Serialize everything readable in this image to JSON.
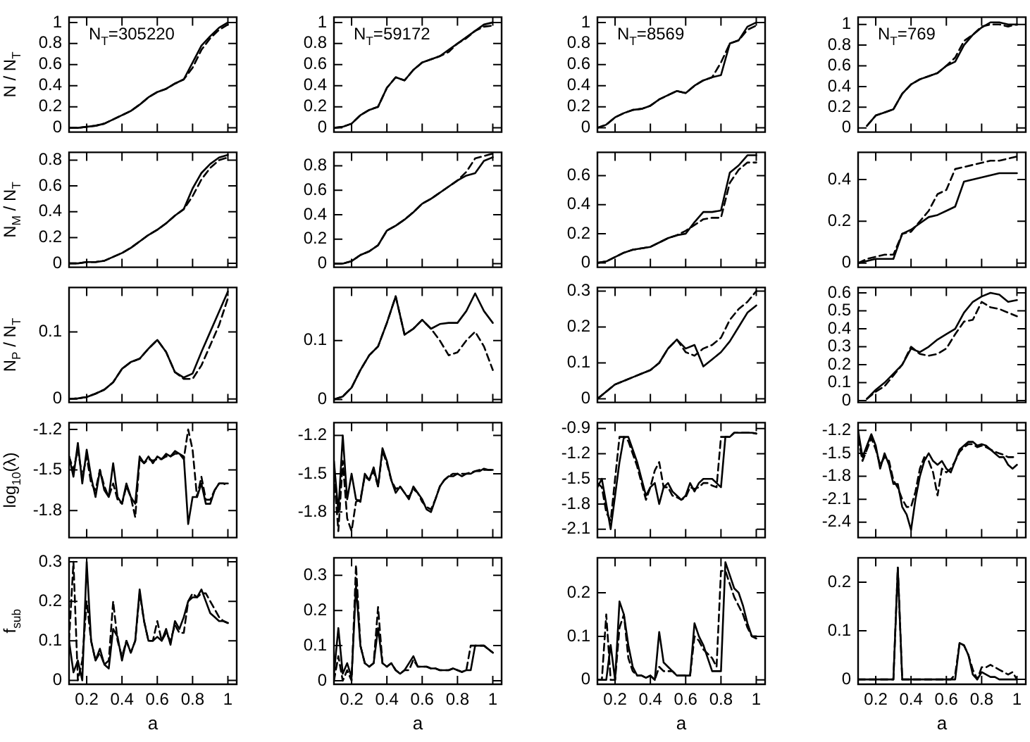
{
  "chart_data": [
    {
      "type": "line",
      "ylabel": "N / N$_{T}$",
      "annotations": [
        "N$_{T}$=305220"
      ],
      "tick_labels": "y",
      "marker": "none",
      "x": [
        0.1,
        0.15,
        0.2,
        0.25,
        0.3,
        0.35,
        0.4,
        0.45,
        0.5,
        0.55,
        0.6,
        0.65,
        0.7,
        0.75,
        0.8,
        0.85,
        0.9,
        0.95,
        1
      ],
      "xlim": [
        0.1,
        1.05
      ],
      "xticks": [
        0.2,
        0.4,
        0.6,
        0.8,
        1
      ],
      "ylim": [
        -0.04,
        1.05
      ],
      "yticks": [
        0,
        0.2,
        0.4,
        0.6,
        0.8,
        1
      ],
      "series": [
        {
          "color": "#000000",
          "line_style": "solid",
          "values": [
            0,
            0,
            0.01,
            0.02,
            0.04,
            0.08,
            0.12,
            0.16,
            0.22,
            0.29,
            0.34,
            0.37,
            0.42,
            0.46,
            0.62,
            0.78,
            0.87,
            0.95,
            1
          ]
        },
        {
          "color": "#000000",
          "line_style": "dashed",
          "values": [
            0,
            0,
            0.01,
            0.02,
            0.04,
            0.08,
            0.12,
            0.16,
            0.22,
            0.29,
            0.34,
            0.37,
            0.42,
            0.46,
            0.57,
            0.74,
            0.85,
            0.93,
            0.98
          ]
        }
      ]
    },
    {
      "type": "line",
      "annotations": [
        "N$_{T}$=59172"
      ],
      "tick_labels": "y",
      "marker": "none",
      "x": [
        0.1,
        0.15,
        0.2,
        0.25,
        0.3,
        0.35,
        0.4,
        0.45,
        0.5,
        0.55,
        0.6,
        0.65,
        0.7,
        0.75,
        0.8,
        0.85,
        0.9,
        0.95,
        1
      ],
      "xlim": [
        0.1,
        1.05
      ],
      "xticks": [
        0.2,
        0.4,
        0.6,
        0.8,
        1
      ],
      "ylim": [
        -0.04,
        1.05
      ],
      "yticks": [
        0,
        0.2,
        0.4,
        0.6,
        0.8,
        1
      ],
      "series": [
        {
          "color": "#000000",
          "line_style": "solid",
          "values": [
            0,
            0.01,
            0.04,
            0.12,
            0.17,
            0.2,
            0.38,
            0.48,
            0.45,
            0.55,
            0.62,
            0.65,
            0.68,
            0.74,
            0.8,
            0.86,
            0.92,
            0.98,
            1
          ]
        },
        {
          "color": "#000000",
          "line_style": "dashed",
          "values": [
            0,
            0.01,
            0.04,
            0.12,
            0.17,
            0.2,
            0.38,
            0.48,
            0.45,
            0.55,
            0.62,
            0.65,
            0.68,
            0.72,
            0.8,
            0.85,
            0.92,
            0.96,
            0.97
          ]
        }
      ]
    },
    {
      "type": "line",
      "annotations": [
        "N$_{T}$=8569"
      ],
      "tick_labels": "y",
      "marker": "none",
      "x": [
        0.1,
        0.15,
        0.2,
        0.25,
        0.3,
        0.35,
        0.4,
        0.45,
        0.5,
        0.55,
        0.6,
        0.65,
        0.7,
        0.75,
        0.8,
        0.85,
        0.9,
        0.95,
        1
      ],
      "xlim": [
        0.1,
        1.05
      ],
      "xticks": [
        0.2,
        0.4,
        0.6,
        0.8,
        1
      ],
      "ylim": [
        -0.04,
        1.05
      ],
      "yticks": [
        0,
        0.2,
        0.4,
        0.6,
        0.8,
        1
      ],
      "series": [
        {
          "color": "#000000",
          "line_style": "solid",
          "values": [
            0,
            0.03,
            0.1,
            0.14,
            0.17,
            0.18,
            0.21,
            0.27,
            0.31,
            0.35,
            0.33,
            0.4,
            0.45,
            0.48,
            0.5,
            0.8,
            0.83,
            0.96,
            1
          ]
        },
        {
          "color": "#000000",
          "line_style": "dashed",
          "values": [
            0,
            0.03,
            0.1,
            0.14,
            0.17,
            0.18,
            0.21,
            0.27,
            0.31,
            0.35,
            0.33,
            0.4,
            0.45,
            0.48,
            0.62,
            0.8,
            0.83,
            0.93,
            0.97
          ]
        }
      ]
    },
    {
      "type": "line",
      "annotations": [
        "N$_{T}$=769"
      ],
      "tick_labels": "y",
      "marker": "none",
      "x": [
        0.15,
        0.2,
        0.25,
        0.3,
        0.35,
        0.4,
        0.45,
        0.5,
        0.55,
        0.6,
        0.65,
        0.7,
        0.75,
        0.8,
        0.85,
        0.9,
        0.95,
        1
      ],
      "xlim": [
        0.1,
        1.05
      ],
      "xticks": [
        0.2,
        0.4,
        0.6,
        0.8,
        1
      ],
      "ylim": [
        -0.04,
        1.07
      ],
      "yticks": [
        0,
        0.2,
        0.4,
        0.6,
        0.8,
        1
      ],
      "series": [
        {
          "color": "#000000",
          "line_style": "solid",
          "values": [
            0.02,
            0.12,
            0.15,
            0.18,
            0.33,
            0.42,
            0.47,
            0.5,
            0.53,
            0.6,
            0.64,
            0.8,
            0.9,
            0.97,
            1.02,
            1.02,
            1,
            1
          ]
        },
        {
          "color": "#000000",
          "line_style": "dashed",
          "values": [
            0.02,
            0.12,
            0.15,
            0.18,
            0.33,
            0.42,
            0.47,
            0.5,
            0.53,
            0.6,
            0.68,
            0.84,
            0.9,
            0.98,
            1,
            1,
            0.98,
            1
          ]
        }
      ]
    },
    {
      "type": "line",
      "ylabel": "N$_{M}$ / N$_{T}$",
      "tick_labels": "y",
      "marker": "none",
      "x": [
        0.1,
        0.15,
        0.2,
        0.25,
        0.3,
        0.35,
        0.4,
        0.45,
        0.5,
        0.55,
        0.6,
        0.65,
        0.7,
        0.75,
        0.8,
        0.85,
        0.9,
        0.95,
        1
      ],
      "xlim": [
        0.1,
        1.05
      ],
      "xticks": [
        0.2,
        0.4,
        0.6,
        0.8,
        1
      ],
      "ylim": [
        -0.03,
        0.86
      ],
      "yticks": [
        0,
        0.2,
        0.4,
        0.6,
        0.8
      ],
      "series": [
        {
          "color": "#000000",
          "line_style": "solid",
          "values": [
            0,
            0,
            0.01,
            0.01,
            0.02,
            0.05,
            0.08,
            0.12,
            0.17,
            0.22,
            0.26,
            0.31,
            0.37,
            0.42,
            0.58,
            0.7,
            0.77,
            0.82,
            0.84
          ]
        },
        {
          "color": "#000000",
          "line_style": "dashed",
          "values": [
            0,
            0,
            0.01,
            0.01,
            0.02,
            0.05,
            0.08,
            0.12,
            0.17,
            0.22,
            0.26,
            0.31,
            0.37,
            0.42,
            0.52,
            0.65,
            0.74,
            0.8,
            0.82
          ]
        }
      ]
    },
    {
      "type": "line",
      "tick_labels": "y",
      "marker": "none",
      "x": [
        0.1,
        0.15,
        0.2,
        0.25,
        0.3,
        0.35,
        0.4,
        0.45,
        0.5,
        0.55,
        0.6,
        0.65,
        0.7,
        0.75,
        0.8,
        0.85,
        0.9,
        0.95,
        1
      ],
      "xlim": [
        0.1,
        1.05
      ],
      "xticks": [
        0.2,
        0.4,
        0.6,
        0.8,
        1
      ],
      "ylim": [
        -0.03,
        0.91
      ],
      "yticks": [
        0,
        0.2,
        0.4,
        0.6,
        0.8
      ],
      "series": [
        {
          "color": "#000000",
          "line_style": "solid",
          "values": [
            0,
            0,
            0.02,
            0.07,
            0.1,
            0.15,
            0.27,
            0.31,
            0.36,
            0.42,
            0.49,
            0.53,
            0.58,
            0.63,
            0.68,
            0.72,
            0.74,
            0.84,
            0.87
          ]
        },
        {
          "color": "#000000",
          "line_style": "dashed",
          "values": [
            0,
            0,
            0.02,
            0.07,
            0.1,
            0.15,
            0.27,
            0.31,
            0.36,
            0.42,
            0.49,
            0.53,
            0.58,
            0.63,
            0.68,
            0.75,
            0.86,
            0.88,
            0.9
          ]
        }
      ]
    },
    {
      "type": "line",
      "tick_labels": "y",
      "marker": "none",
      "x": [
        0.1,
        0.15,
        0.2,
        0.25,
        0.3,
        0.35,
        0.4,
        0.45,
        0.5,
        0.55,
        0.6,
        0.65,
        0.7,
        0.75,
        0.8,
        0.85,
        0.9,
        0.95,
        1
      ],
      "xlim": [
        0.1,
        1.05
      ],
      "xticks": [
        0.2,
        0.4,
        0.6,
        0.8,
        1
      ],
      "ylim": [
        -0.03,
        0.76
      ],
      "yticks": [
        0,
        0.2,
        0.4,
        0.6
      ],
      "series": [
        {
          "color": "#000000",
          "line_style": "solid",
          "values": [
            0,
            0.01,
            0.04,
            0.07,
            0.09,
            0.1,
            0.11,
            0.14,
            0.17,
            0.19,
            0.2,
            0.28,
            0.35,
            0.35,
            0.36,
            0.62,
            0.67,
            0.74,
            0.74
          ]
        },
        {
          "color": "#000000",
          "line_style": "dashed",
          "values": [
            0,
            0.01,
            0.04,
            0.07,
            0.09,
            0.1,
            0.11,
            0.14,
            0.17,
            0.19,
            0.22,
            0.26,
            0.3,
            0.31,
            0.31,
            0.55,
            0.64,
            0.69,
            0.69
          ]
        }
      ]
    },
    {
      "type": "line",
      "tick_labels": "y",
      "marker": "none",
      "x": [
        0.1,
        0.15,
        0.2,
        0.25,
        0.3,
        0.35,
        0.4,
        0.45,
        0.5,
        0.55,
        0.6,
        0.65,
        0.7,
        0.75,
        0.8,
        0.85,
        0.9,
        0.95,
        1
      ],
      "xlim": [
        0.1,
        1.05
      ],
      "xticks": [
        0.2,
        0.4,
        0.6,
        0.8,
        1
      ],
      "ylim": [
        -0.02,
        0.53
      ],
      "yticks": [
        0,
        0.2,
        0.4
      ],
      "series": [
        {
          "color": "#000000",
          "line_style": "solid",
          "values": [
            0,
            0.01,
            0.02,
            0.02,
            0.02,
            0.14,
            0.16,
            0.19,
            0.22,
            0.23,
            0.25,
            0.27,
            0.39,
            0.4,
            0.41,
            0.42,
            0.43,
            0.43,
            0.43
          ]
        },
        {
          "color": "#000000",
          "line_style": "dashed",
          "values": [
            0,
            0.02,
            0.03,
            0.04,
            0.04,
            0.14,
            0.15,
            0.2,
            0.25,
            0.33,
            0.35,
            0.45,
            0.46,
            0.47,
            0.48,
            0.49,
            0.49,
            0.5,
            0.51
          ]
        }
      ]
    },
    {
      "type": "line",
      "ylabel": "N$_{P}$ / N$_{T}$",
      "tick_labels": "y",
      "marker": "none",
      "x": [
        0.1,
        0.15,
        0.2,
        0.25,
        0.3,
        0.35,
        0.4,
        0.45,
        0.5,
        0.55,
        0.6,
        0.65,
        0.7,
        0.75,
        0.8,
        0.85,
        0.9,
        0.95,
        1
      ],
      "xlim": [
        0.1,
        1.05
      ],
      "xticks": [
        0.2,
        0.4,
        0.6,
        0.8,
        1
      ],
      "ylim": [
        -0.005,
        0.166
      ],
      "yticks": [
        0,
        0.1
      ],
      "series": [
        {
          "color": "#000000",
          "line_style": "solid",
          "values": [
            0,
            0.001,
            0.003,
            0.008,
            0.014,
            0.025,
            0.045,
            0.055,
            0.06,
            0.075,
            0.088,
            0.07,
            0.04,
            0.032,
            0.038,
            0.07,
            0.1,
            0.13,
            0.16
          ]
        },
        {
          "color": "#000000",
          "line_style": "dashed",
          "values": [
            0,
            0.001,
            0.003,
            0.008,
            0.014,
            0.025,
            0.045,
            0.055,
            0.06,
            0.075,
            0.088,
            0.07,
            0.04,
            0.03,
            0.03,
            0.05,
            0.08,
            0.11,
            0.15
          ]
        }
      ]
    },
    {
      "type": "line",
      "tick_labels": "y",
      "marker": "none",
      "x": [
        0.1,
        0.15,
        0.2,
        0.25,
        0.3,
        0.35,
        0.4,
        0.45,
        0.5,
        0.55,
        0.6,
        0.65,
        0.7,
        0.75,
        0.8,
        0.85,
        0.9,
        0.95,
        1
      ],
      "xlim": [
        0.1,
        1.05
      ],
      "xticks": [
        0.2,
        0.4,
        0.6,
        0.8,
        1
      ],
      "ylim": [
        -0.005,
        0.19
      ],
      "yticks": [
        0,
        0.1
      ],
      "series": [
        {
          "color": "#000000",
          "line_style": "solid",
          "values": [
            0,
            0.005,
            0.02,
            0.05,
            0.075,
            0.09,
            0.13,
            0.175,
            0.11,
            0.12,
            0.135,
            0.12,
            0.128,
            0.13,
            0.13,
            0.15,
            0.18,
            0.15,
            0.13
          ]
        },
        {
          "color": "#000000",
          "line_style": "dashed",
          "values": [
            0,
            0.005,
            0.02,
            0.05,
            0.075,
            0.09,
            0.13,
            0.175,
            0.11,
            0.12,
            0.135,
            0.12,
            0.1,
            0.075,
            0.08,
            0.1,
            0.115,
            0.09,
            0.05
          ]
        }
      ]
    },
    {
      "type": "line",
      "tick_labels": "y",
      "marker": "none",
      "x": [
        0.1,
        0.15,
        0.2,
        0.25,
        0.3,
        0.35,
        0.4,
        0.45,
        0.5,
        0.55,
        0.6,
        0.65,
        0.7,
        0.75,
        0.8,
        0.85,
        0.9,
        0.95,
        1
      ],
      "xlim": [
        0.1,
        1.05
      ],
      "xticks": [
        0.2,
        0.4,
        0.6,
        0.8,
        1
      ],
      "ylim": [
        -0.01,
        0.31
      ],
      "yticks": [
        0,
        0.1,
        0.2,
        0.3
      ],
      "series": [
        {
          "color": "#000000",
          "line_style": "solid",
          "values": [
            0,
            0.02,
            0.04,
            0.05,
            0.06,
            0.07,
            0.08,
            0.1,
            0.14,
            0.165,
            0.14,
            0.15,
            0.09,
            0.11,
            0.13,
            0.16,
            0.2,
            0.24,
            0.26
          ]
        },
        {
          "color": "#000000",
          "line_style": "dashed",
          "values": [
            0,
            0.02,
            0.04,
            0.05,
            0.06,
            0.07,
            0.08,
            0.1,
            0.14,
            0.165,
            0.13,
            0.12,
            0.14,
            0.15,
            0.17,
            0.22,
            0.25,
            0.27,
            0.3
          ]
        }
      ]
    },
    {
      "type": "line",
      "tick_labels": "y",
      "marker": "none",
      "x": [
        0.15,
        0.2,
        0.25,
        0.3,
        0.35,
        0.4,
        0.45,
        0.5,
        0.55,
        0.6,
        0.65,
        0.7,
        0.75,
        0.8,
        0.85,
        0.9,
        0.95,
        1
      ],
      "xlim": [
        0.1,
        1.05
      ],
      "xticks": [
        0.2,
        0.4,
        0.6,
        0.8,
        1
      ],
      "ylim": [
        -0.01,
        0.63
      ],
      "yticks": [
        0,
        0.1,
        0.2,
        0.3,
        0.4,
        0.5,
        0.6
      ],
      "series": [
        {
          "color": "#000000",
          "line_style": "solid",
          "values": [
            0.01,
            0.06,
            0.1,
            0.15,
            0.2,
            0.29,
            0.27,
            0.3,
            0.34,
            0.37,
            0.4,
            0.49,
            0.55,
            0.58,
            0.6,
            0.59,
            0.55,
            0.56
          ]
        },
        {
          "color": "#000000",
          "line_style": "dashed",
          "values": [
            0.01,
            0.05,
            0.08,
            0.14,
            0.2,
            0.3,
            0.26,
            0.25,
            0.26,
            0.29,
            0.37,
            0.44,
            0.45,
            0.55,
            0.52,
            0.51,
            0.49,
            0.47
          ]
        }
      ]
    },
    {
      "type": "line",
      "ylabel": "log$_{10}$(λ)",
      "tick_labels": "y",
      "marker": "none",
      "x": [
        0.1,
        0.125,
        0.15,
        0.175,
        0.2,
        0.225,
        0.25,
        0.275,
        0.3,
        0.325,
        0.35,
        0.375,
        0.4,
        0.425,
        0.45,
        0.475,
        0.5,
        0.525,
        0.55,
        0.575,
        0.6,
        0.625,
        0.65,
        0.675,
        0.7,
        0.725,
        0.75,
        0.775,
        0.8,
        0.825,
        0.85,
        0.875,
        0.9,
        0.925,
        0.95,
        0.975,
        1
      ],
      "xlim": [
        0.1,
        1.05
      ],
      "xticks": [
        0.2,
        0.4,
        0.6,
        0.8,
        1
      ],
      "ylim": [
        -2.0,
        -1.15
      ],
      "yticks": [
        -1.2,
        -1.5,
        -1.8
      ],
      "series": [
        {
          "color": "#000000",
          "line_style": "solid",
          "values": [
            -1.4,
            -1.55,
            -1.3,
            -1.6,
            -1.35,
            -1.55,
            -1.7,
            -1.5,
            -1.65,
            -1.7,
            -1.45,
            -1.7,
            -1.75,
            -1.6,
            -1.7,
            -1.75,
            -1.4,
            -1.45,
            -1.4,
            -1.45,
            -1.4,
            -1.42,
            -1.38,
            -1.4,
            -1.36,
            -1.38,
            -1.4,
            -1.9,
            -1.7,
            -1.7,
            -1.6,
            -1.75,
            -1.75,
            -1.65,
            -1.6,
            -1.6,
            -1.6
          ]
        },
        {
          "color": "#000000",
          "line_style": "dashed",
          "values": [
            -1.4,
            -1.5,
            -1.35,
            -1.55,
            -1.4,
            -1.6,
            -1.65,
            -1.5,
            -1.62,
            -1.7,
            -1.6,
            -1.72,
            -1.75,
            -1.62,
            -1.7,
            -1.85,
            -1.42,
            -1.45,
            -1.42,
            -1.43,
            -1.42,
            -1.42,
            -1.4,
            -1.4,
            -1.38,
            -1.38,
            -1.42,
            -1.2,
            -1.35,
            -1.7,
            -1.55,
            -1.72,
            -1.72,
            -1.65,
            -1.6,
            -1.6,
            -1.62
          ]
        }
      ]
    },
    {
      "type": "line",
      "tick_labels": "y",
      "marker": "none",
      "x": [
        0.1,
        0.125,
        0.15,
        0.175,
        0.2,
        0.225,
        0.25,
        0.275,
        0.3,
        0.325,
        0.35,
        0.375,
        0.4,
        0.425,
        0.45,
        0.475,
        0.5,
        0.525,
        0.55,
        0.575,
        0.6,
        0.625,
        0.65,
        0.675,
        0.7,
        0.725,
        0.75,
        0.775,
        0.8,
        0.825,
        0.85,
        0.875,
        0.9,
        0.925,
        0.95,
        0.975,
        1
      ],
      "xlim": [
        0.1,
        1.05
      ],
      "xticks": [
        0.2,
        0.4,
        0.6,
        0.8,
        1
      ],
      "ylim": [
        -2.0,
        -1.1
      ],
      "yticks": [
        -1.2,
        -1.5,
        -1.8
      ],
      "series": [
        {
          "color": "#000000",
          "line_style": "solid",
          "values": [
            -1.4,
            -1.8,
            -1.2,
            -1.7,
            -1.5,
            -1.7,
            -1.72,
            -1.5,
            -1.55,
            -1.45,
            -1.6,
            -1.3,
            -1.4,
            -1.55,
            -1.65,
            -1.6,
            -1.65,
            -1.7,
            -1.6,
            -1.65,
            -1.7,
            -1.78,
            -1.8,
            -1.7,
            -1.6,
            -1.55,
            -1.52,
            -1.52,
            -1.5,
            -1.52,
            -1.5,
            -1.5,
            -1.48,
            -1.48,
            -1.46,
            -1.47,
            -1.47
          ]
        },
        {
          "color": "#000000",
          "line_style": "dashed",
          "values": [
            -1.5,
            -1.95,
            -1.4,
            -1.85,
            -1.95,
            -1.72,
            -1.7,
            -1.52,
            -1.55,
            -1.48,
            -1.6,
            -1.32,
            -1.42,
            -1.55,
            -1.62,
            -1.6,
            -1.65,
            -1.68,
            -1.62,
            -1.65,
            -1.72,
            -1.76,
            -1.78,
            -1.7,
            -1.6,
            -1.55,
            -1.52,
            -1.5,
            -1.5,
            -1.5,
            -1.5,
            -1.49,
            -1.48,
            -1.47,
            -1.47,
            -1.47,
            -1.47
          ]
        }
      ]
    },
    {
      "type": "line",
      "tick_labels": "y",
      "marker": "none",
      "x": [
        0.1,
        0.125,
        0.15,
        0.175,
        0.2,
        0.225,
        0.25,
        0.275,
        0.3,
        0.325,
        0.35,
        0.375,
        0.4,
        0.425,
        0.45,
        0.475,
        0.5,
        0.525,
        0.55,
        0.575,
        0.6,
        0.625,
        0.65,
        0.675,
        0.7,
        0.725,
        0.75,
        0.775,
        0.8,
        0.825,
        0.85,
        0.875,
        0.9,
        0.925,
        0.95,
        0.975,
        1
      ],
      "xlim": [
        0.1,
        1.05
      ],
      "xticks": [
        0.2,
        0.4,
        0.6,
        0.8,
        1
      ],
      "ylim": [
        -2.2,
        -0.83
      ],
      "yticks": [
        -0.9,
        -1.2,
        -1.5,
        -1.8,
        -2.1
      ],
      "series": [
        {
          "color": "#000000",
          "line_style": "solid",
          "values": [
            -1.6,
            -1.5,
            -1.8,
            -2.1,
            -1.7,
            -1.3,
            -1.0,
            -1.0,
            -1.15,
            -1.3,
            -1.5,
            -1.7,
            -1.6,
            -1.55,
            -1.8,
            -1.6,
            -1.55,
            -1.65,
            -1.7,
            -1.75,
            -1.7,
            -1.55,
            -1.65,
            -1.55,
            -1.5,
            -1.5,
            -1.5,
            -1.55,
            -1.6,
            -1.0,
            -1.0,
            -0.95,
            -0.95,
            -0.95,
            -0.95,
            -0.95,
            -0.96
          ]
        },
        {
          "color": "#000000",
          "line_style": "dashed",
          "values": [
            -1.55,
            -1.6,
            -1.9,
            -2.0,
            -1.5,
            -1.0,
            -1.0,
            -1.05,
            -1.2,
            -1.35,
            -1.55,
            -1.75,
            -1.6,
            -1.4,
            -1.3,
            -1.6,
            -1.6,
            -1.7,
            -1.72,
            -1.75,
            -1.72,
            -1.6,
            -1.62,
            -1.6,
            -1.55,
            -1.55,
            -1.58,
            -1.6,
            -1.0,
            -1.0,
            -1.0,
            -0.95,
            -0.95,
            -0.95,
            -0.95,
            -0.95,
            -0.96
          ]
        }
      ]
    },
    {
      "type": "line",
      "tick_labels": "y",
      "marker": "none",
      "x": [
        0.1,
        0.125,
        0.15,
        0.175,
        0.2,
        0.225,
        0.25,
        0.275,
        0.3,
        0.325,
        0.35,
        0.375,
        0.4,
        0.425,
        0.45,
        0.475,
        0.5,
        0.525,
        0.55,
        0.575,
        0.6,
        0.625,
        0.65,
        0.675,
        0.7,
        0.725,
        0.75,
        0.775,
        0.8,
        0.825,
        0.85,
        0.875,
        0.9,
        0.925,
        0.95,
        0.975,
        1
      ],
      "xlim": [
        0.1,
        1.05
      ],
      "xticks": [
        0.2,
        0.4,
        0.6,
        0.8,
        1
      ],
      "ylim": [
        -2.6,
        -1.1
      ],
      "yticks": [
        -1.2,
        -1.5,
        -1.8,
        -2.1,
        -2.4
      ],
      "series": [
        {
          "color": "#000000",
          "line_style": "solid",
          "values": [
            -1.2,
            -1.55,
            -1.4,
            -1.25,
            -1.4,
            -1.7,
            -1.5,
            -1.65,
            -1.9,
            -1.9,
            -2.2,
            -2.3,
            -2.5,
            -2.1,
            -1.8,
            -1.6,
            -1.5,
            -1.6,
            -1.65,
            -1.6,
            -1.7,
            -1.75,
            -1.6,
            -1.45,
            -1.4,
            -1.35,
            -1.35,
            -1.4,
            -1.38,
            -1.4,
            -1.45,
            -1.5,
            -1.55,
            -1.55,
            -1.65,
            -1.7,
            -1.65
          ]
        },
        {
          "color": "#000000",
          "line_style": "dashed",
          "values": [
            -1.3,
            -1.6,
            -1.45,
            -1.3,
            -1.45,
            -1.65,
            -1.55,
            -1.6,
            -1.85,
            -1.95,
            -2.1,
            -2.2,
            -2.2,
            -2.0,
            -1.7,
            -1.55,
            -1.6,
            -1.75,
            -2.05,
            -1.7,
            -1.75,
            -1.7,
            -1.6,
            -1.48,
            -1.42,
            -1.38,
            -1.38,
            -1.42,
            -1.4,
            -1.42,
            -1.45,
            -1.48,
            -1.5,
            -1.52,
            -1.55,
            -1.55,
            -1.55
          ]
        }
      ]
    },
    {
      "type": "line",
      "ylabel": "f$_{sub}$",
      "xlabel": "a",
      "marker": "none",
      "x": [
        0.1,
        0.125,
        0.15,
        0.175,
        0.2,
        0.225,
        0.25,
        0.275,
        0.3,
        0.325,
        0.35,
        0.375,
        0.4,
        0.425,
        0.45,
        0.475,
        0.5,
        0.525,
        0.55,
        0.575,
        0.6,
        0.625,
        0.65,
        0.675,
        0.7,
        0.725,
        0.75,
        0.775,
        0.8,
        0.825,
        0.85,
        0.875,
        0.9,
        0.925,
        0.95,
        0.975,
        1
      ],
      "xlim": [
        0.1,
        1.05
      ],
      "xticks": [
        0.2,
        0.4,
        0.6,
        0.8,
        1
      ],
      "ylim": [
        -0.01,
        0.31
      ],
      "yticks": [
        0,
        0.1,
        0.2,
        0.3
      ],
      "series": [
        {
          "color": "#000000",
          "line_style": "solid",
          "values": [
            0.1,
            0.02,
            0.05,
            0,
            0.3,
            0.1,
            0.05,
            0.08,
            0.04,
            0.03,
            0.13,
            0.11,
            0.05,
            0.1,
            0.07,
            0.1,
            0.23,
            0.15,
            0.1,
            0.1,
            0.11,
            0.1,
            0.13,
            0.09,
            0.15,
            0.13,
            0.16,
            0.2,
            0.21,
            0.21,
            0.23,
            0.2,
            0.17,
            0.16,
            0.15,
            0.15,
            0.145
          ]
        },
        {
          "color": "#000000",
          "line_style": "dashed",
          "values": [
            0.1,
            0.3,
            0,
            0.05,
            0.2,
            0.1,
            0.05,
            0.07,
            0.04,
            0.05,
            0.2,
            0.1,
            0.06,
            0.1,
            0.07,
            0.1,
            0.22,
            0.15,
            0.1,
            0.1,
            0.15,
            0.1,
            0.12,
            0.1,
            0.14,
            0.12,
            0.12,
            0.2,
            0.22,
            0.21,
            0.22,
            0.22,
            0.2,
            0.18,
            0.16,
            0.15,
            0.145
          ]
        }
      ]
    },
    {
      "type": "line",
      "xlabel": "a",
      "marker": "none",
      "x": [
        0.1,
        0.125,
        0.15,
        0.175,
        0.2,
        0.225,
        0.25,
        0.275,
        0.3,
        0.325,
        0.35,
        0.375,
        0.4,
        0.425,
        0.45,
        0.475,
        0.5,
        0.525,
        0.55,
        0.575,
        0.6,
        0.625,
        0.65,
        0.675,
        0.7,
        0.725,
        0.75,
        0.775,
        0.8,
        0.825,
        0.85,
        0.875,
        0.9,
        0.925,
        0.95,
        0.975,
        1
      ],
      "xlim": [
        0.1,
        1.05
      ],
      "xticks": [
        0.2,
        0.4,
        0.6,
        0.8,
        1
      ],
      "ylim": [
        -0.01,
        0.35
      ],
      "yticks": [
        0,
        0.1,
        0.2,
        0.3
      ],
      "series": [
        {
          "color": "#000000",
          "line_style": "solid",
          "values": [
            0.02,
            0.15,
            0.02,
            0.05,
            0.01,
            0.27,
            0.1,
            0.05,
            0.04,
            0.05,
            0.15,
            0.05,
            0.04,
            0.05,
            0.03,
            0.02,
            0.03,
            0.05,
            0.07,
            0.04,
            0.04,
            0.04,
            0.035,
            0.035,
            0.03,
            0.03,
            0.03,
            0.035,
            0.03,
            0.025,
            0.03,
            0.03,
            0.1,
            0.1,
            0.1,
            0.09,
            0.08
          ]
        },
        {
          "color": "#000000",
          "line_style": "dashed",
          "values": [
            0,
            0.07,
            0,
            0.03,
            0,
            0.33,
            0.1,
            0.05,
            0.04,
            0.05,
            0.21,
            0.05,
            0.04,
            0.05,
            0.03,
            0.02,
            0.03,
            0.03,
            0.06,
            0.04,
            0.04,
            0.04,
            0.035,
            0.035,
            0.03,
            0.03,
            0.03,
            0.035,
            0.03,
            0.025,
            0.03,
            0.1,
            0.1,
            0.1,
            0.1,
            0.09,
            0.08
          ]
        }
      ]
    },
    {
      "type": "line",
      "xlabel": "a",
      "marker": "none",
      "x": [
        0.1,
        0.125,
        0.15,
        0.175,
        0.2,
        0.225,
        0.25,
        0.275,
        0.3,
        0.325,
        0.35,
        0.375,
        0.4,
        0.425,
        0.45,
        0.475,
        0.5,
        0.525,
        0.55,
        0.575,
        0.6,
        0.625,
        0.65,
        0.675,
        0.7,
        0.725,
        0.75,
        0.775,
        0.8,
        0.825,
        0.85,
        0.875,
        0.9,
        0.925,
        0.95,
        0.975,
        1
      ],
      "xlim": [
        0.1,
        1.05
      ],
      "xticks": [
        0.2,
        0.4,
        0.6,
        0.8,
        1
      ],
      "ylim": [
        -0.01,
        0.28
      ],
      "yticks": [
        0,
        0.1,
        0.2
      ],
      "series": [
        {
          "color": "#000000",
          "line_style": "solid",
          "values": [
            0,
            0,
            0,
            0.08,
            0,
            0.18,
            0.15,
            0.08,
            0.03,
            0.01,
            0.01,
            0.005,
            0.01,
            0,
            0.11,
            0.04,
            0.03,
            0.02,
            0.01,
            0.01,
            0.01,
            0.01,
            0.13,
            0.1,
            0.08,
            0.05,
            0.02,
            0.02,
            0.02,
            0.27,
            0.24,
            0.21,
            0.2,
            0.17,
            0.13,
            0.1,
            0.1
          ]
        },
        {
          "color": "#000000",
          "line_style": "dashed",
          "values": [
            0,
            0,
            0.15,
            0,
            0,
            0.12,
            0.15,
            0.05,
            0.02,
            0.01,
            0.01,
            0.005,
            0.01,
            0,
            0.03,
            0.02,
            0.02,
            0.02,
            0.01,
            0.01,
            0.01,
            0.01,
            0.1,
            0.09,
            0.07,
            0.06,
            0.05,
            0.03,
            0.25,
            0.25,
            0.22,
            0.19,
            0.17,
            0.15,
            0.12,
            0.1,
            0.095
          ]
        }
      ]
    },
    {
      "type": "line",
      "xlabel": "a",
      "marker": "none",
      "x": [
        0.1,
        0.125,
        0.15,
        0.175,
        0.2,
        0.225,
        0.25,
        0.275,
        0.3,
        0.325,
        0.35,
        0.375,
        0.4,
        0.425,
        0.45,
        0.475,
        0.5,
        0.525,
        0.55,
        0.575,
        0.6,
        0.625,
        0.65,
        0.675,
        0.7,
        0.725,
        0.75,
        0.775,
        0.8,
        0.825,
        0.85,
        0.875,
        0.9,
        0.925,
        0.95,
        0.975,
        1
      ],
      "xlim": [
        0.1,
        1.05
      ],
      "xticks": [
        0.2,
        0.4,
        0.6,
        0.8,
        1
      ],
      "ylim": [
        -0.01,
        0.25
      ],
      "yticks": [
        0,
        0.1,
        0.2
      ],
      "series": [
        {
          "color": "#000000",
          "line_style": "solid",
          "values": [
            0,
            0,
            0,
            0,
            0,
            0,
            0,
            0,
            0,
            0.23,
            0,
            0,
            0,
            0,
            0,
            0,
            0,
            0,
            0,
            0,
            0,
            0,
            0,
            0.075,
            0.07,
            0.05,
            0.01,
            0,
            0.015,
            0.01,
            0.005,
            0.005,
            0,
            0,
            0,
            0,
            0
          ]
        },
        {
          "color": "#000000",
          "line_style": "dashed",
          "values": [
            0,
            0,
            0,
            0,
            0,
            0,
            0,
            0,
            0,
            0.23,
            0,
            0,
            0,
            0,
            0,
            0,
            0,
            0,
            0,
            0,
            0,
            0,
            0.01,
            0.075,
            0.07,
            0.05,
            0.02,
            0,
            0.025,
            0.025,
            0.03,
            0.025,
            0.02,
            0.015,
            0.01,
            0.015,
            0
          ]
        }
      ]
    }
  ]
}
